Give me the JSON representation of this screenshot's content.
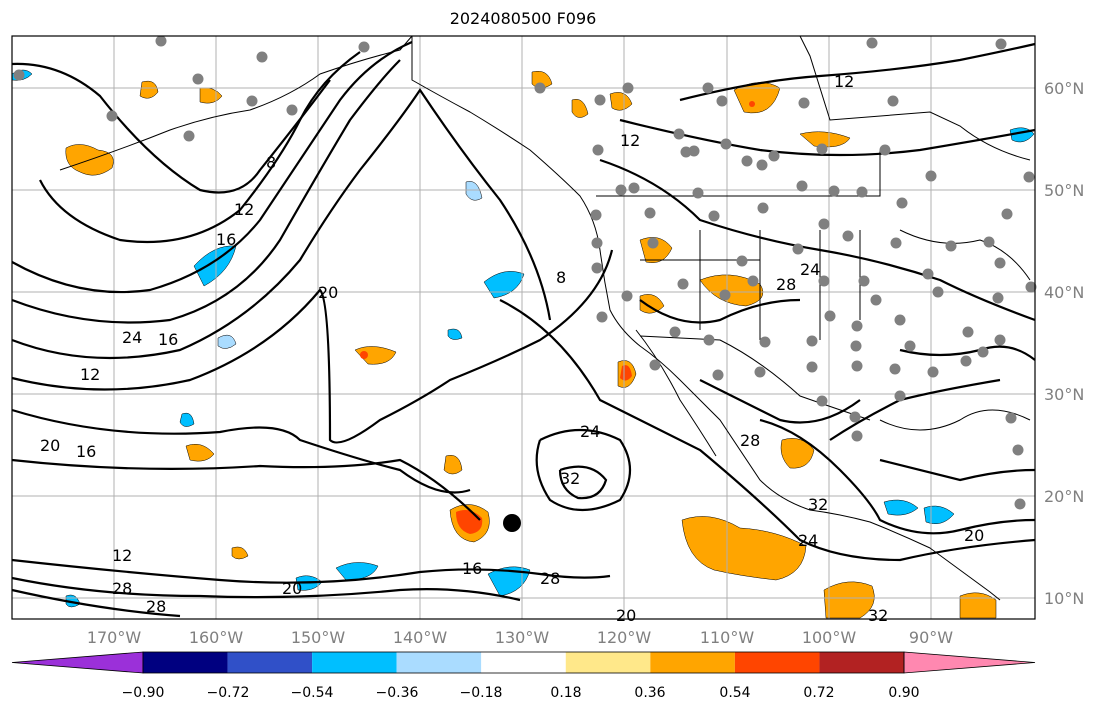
{
  "title": "2024080500 F096",
  "latitude_labels": [
    "60°N",
    "50°N",
    "40°N",
    "30°N",
    "20°N",
    "10°N"
  ],
  "longitude_labels": [
    "170°W",
    "160°W",
    "150°W",
    "140°W",
    "130°W",
    "120°W",
    "110°W",
    "100°W",
    "90°W"
  ],
  "colorbar": {
    "tick_labels": [
      "−0.90",
      "−0.72",
      "−0.54",
      "−0.36",
      "−0.18",
      "0.18",
      "0.36",
      "0.54",
      "0.72",
      "0.90"
    ],
    "colors": [
      "#9b30d9",
      "#000080",
      "#3050c8",
      "#00bfff",
      "#aadcff",
      "#ffffff",
      "#ffe88a",
      "#ffa500",
      "#ff4500",
      "#b22222",
      "#ff88b0"
    ]
  },
  "contour_labels": [
    "12",
    "8",
    "12",
    "16",
    "20",
    "24",
    "16",
    "12",
    "20",
    "16",
    "24",
    "32",
    "16",
    "12",
    "28",
    "28",
    "20",
    "24",
    "28",
    "24",
    "32",
    "28",
    "20",
    "8",
    "12",
    "28",
    "20",
    "32"
  ],
  "colors": {
    "fill_orange": "#ffa500",
    "fill_redorange": "#ff4500",
    "fill_yellow": "#ffe88a",
    "fill_blue": "#00bfff",
    "fill_lightblue": "#aadcff",
    "station": "#808080",
    "land": "#000000",
    "grid": "#b0b0b0"
  }
}
